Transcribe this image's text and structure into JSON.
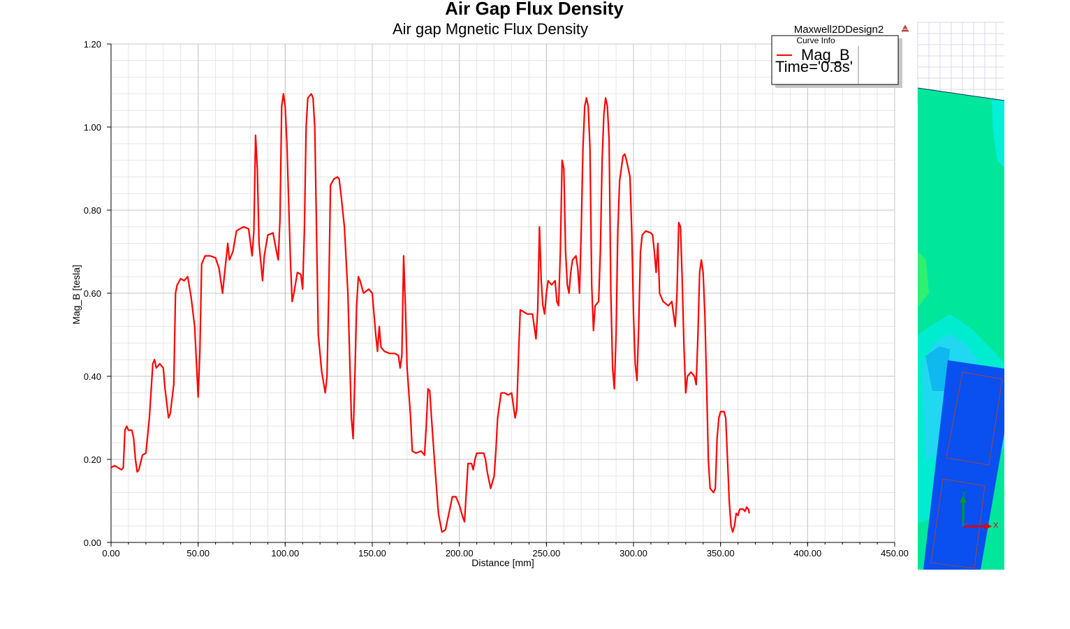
{
  "chart_data": {
    "type": "line",
    "title": "Air Gap Flux Density",
    "subtitle": "Air gap Mgnetic Flux Density",
    "design_name": "Maxwell2DDesign2",
    "xlabel": "Distance [mm]",
    "ylabel": "Mag_B [tesla]",
    "xlim": [
      0,
      450
    ],
    "ylim": [
      0,
      1.2
    ],
    "x_ticks": [
      "0.00",
      "50.00",
      "100.00",
      "150.00",
      "200.00",
      "250.00",
      "300.00",
      "350.00",
      "400.00",
      "450.00"
    ],
    "y_ticks": [
      "0.00",
      "0.20",
      "0.40",
      "0.60",
      "0.80",
      "1.00",
      "1.20"
    ],
    "grid": true,
    "legend": {
      "header": "Curve Info",
      "position": "top-right",
      "entries": [
        {
          "label": "Mag_B",
          "sublabel": "Time='0.8s'"
        }
      ]
    },
    "series": [
      {
        "name": "Mag_B",
        "color": "#ff0000",
        "points": [
          [
            0,
            0.18
          ],
          [
            2,
            0.185
          ],
          [
            4,
            0.18
          ],
          [
            6,
            0.175
          ],
          [
            7,
            0.18
          ],
          [
            8,
            0.27
          ],
          [
            9,
            0.28
          ],
          [
            10,
            0.27
          ],
          [
            12,
            0.27
          ],
          [
            13,
            0.25
          ],
          [
            14,
            0.2
          ],
          [
            15,
            0.17
          ],
          [
            16,
            0.175
          ],
          [
            18,
            0.21
          ],
          [
            20,
            0.215
          ],
          [
            22,
            0.3
          ],
          [
            24,
            0.43
          ],
          [
            25,
            0.44
          ],
          [
            26,
            0.42
          ],
          [
            28,
            0.43
          ],
          [
            30,
            0.42
          ],
          [
            31,
            0.37
          ],
          [
            33,
            0.3
          ],
          [
            34,
            0.31
          ],
          [
            36,
            0.38
          ],
          [
            37,
            0.6
          ],
          [
            38,
            0.62
          ],
          [
            40,
            0.635
          ],
          [
            42,
            0.63
          ],
          [
            44,
            0.64
          ],
          [
            46,
            0.59
          ],
          [
            48,
            0.52
          ],
          [
            50,
            0.35
          ],
          [
            51,
            0.46
          ],
          [
            52,
            0.67
          ],
          [
            54,
            0.69
          ],
          [
            57,
            0.69
          ],
          [
            60,
            0.685
          ],
          [
            62,
            0.66
          ],
          [
            64,
            0.6
          ],
          [
            65,
            0.64
          ],
          [
            67,
            0.72
          ],
          [
            68,
            0.68
          ],
          [
            70,
            0.7
          ],
          [
            72,
            0.75
          ],
          [
            74,
            0.755
          ],
          [
            76,
            0.76
          ],
          [
            79,
            0.755
          ],
          [
            81,
            0.69
          ],
          [
            82,
            0.75
          ],
          [
            83,
            0.98
          ],
          [
            84,
            0.9
          ],
          [
            85,
            0.72
          ],
          [
            87,
            0.63
          ],
          [
            88,
            0.69
          ],
          [
            90,
            0.74
          ],
          [
            93,
            0.745
          ],
          [
            95,
            0.7
          ],
          [
            96,
            0.68
          ],
          [
            97,
            0.78
          ],
          [
            98,
            1.05
          ],
          [
            99,
            1.08
          ],
          [
            100,
            1.05
          ],
          [
            101,
            0.96
          ],
          [
            103,
            0.68
          ],
          [
            104,
            0.58
          ],
          [
            105,
            0.6
          ],
          [
            107,
            0.65
          ],
          [
            109,
            0.645
          ],
          [
            110,
            0.61
          ],
          [
            111,
            0.75
          ],
          [
            112,
            1.0
          ],
          [
            113,
            1.07
          ],
          [
            115,
            1.08
          ],
          [
            116,
            1.07
          ],
          [
            117,
            1.0
          ],
          [
            118,
            0.75
          ],
          [
            119,
            0.5
          ],
          [
            121,
            0.41
          ],
          [
            123,
            0.36
          ],
          [
            124,
            0.4
          ],
          [
            125,
            0.6
          ],
          [
            126,
            0.86
          ],
          [
            128,
            0.875
          ],
          [
            130,
            0.88
          ],
          [
            131,
            0.875
          ],
          [
            132,
            0.84
          ],
          [
            134,
            0.76
          ],
          [
            136,
            0.6
          ],
          [
            137,
            0.45
          ],
          [
            138,
            0.3
          ],
          [
            139,
            0.25
          ],
          [
            140,
            0.4
          ],
          [
            141,
            0.57
          ],
          [
            142,
            0.64
          ],
          [
            143,
            0.63
          ],
          [
            145,
            0.6
          ],
          [
            148,
            0.61
          ],
          [
            150,
            0.6
          ],
          [
            152,
            0.5
          ],
          [
            153,
            0.46
          ],
          [
            154,
            0.52
          ],
          [
            155,
            0.47
          ],
          [
            157,
            0.46
          ],
          [
            160,
            0.455
          ],
          [
            163,
            0.455
          ],
          [
            165,
            0.45
          ],
          [
            166,
            0.42
          ],
          [
            167,
            0.45
          ],
          [
            168,
            0.69
          ],
          [
            169,
            0.57
          ],
          [
            170,
            0.42
          ],
          [
            172,
            0.3
          ],
          [
            173,
            0.22
          ],
          [
            175,
            0.215
          ],
          [
            178,
            0.22
          ],
          [
            180,
            0.21
          ],
          [
            181,
            0.28
          ],
          [
            182,
            0.37
          ],
          [
            183,
            0.365
          ],
          [
            184,
            0.3
          ],
          [
            186,
            0.18
          ],
          [
            188,
            0.07
          ],
          [
            190,
            0.025
          ],
          [
            192,
            0.03
          ],
          [
            194,
            0.07
          ],
          [
            196,
            0.11
          ],
          [
            198,
            0.11
          ],
          [
            200,
            0.09
          ],
          [
            202,
            0.06
          ],
          [
            203,
            0.05
          ],
          [
            204,
            0.12
          ],
          [
            205,
            0.19
          ],
          [
            207,
            0.19
          ],
          [
            208,
            0.175
          ],
          [
            209,
            0.2
          ],
          [
            210,
            0.215
          ],
          [
            212,
            0.215
          ],
          [
            214,
            0.215
          ],
          [
            215,
            0.2
          ],
          [
            216,
            0.17
          ],
          [
            218,
            0.13
          ],
          [
            220,
            0.16
          ],
          [
            221,
            0.22
          ],
          [
            222,
            0.3
          ],
          [
            224,
            0.36
          ],
          [
            226,
            0.36
          ],
          [
            228,
            0.355
          ],
          [
            230,
            0.36
          ],
          [
            232,
            0.3
          ],
          [
            233,
            0.32
          ],
          [
            234,
            0.45
          ],
          [
            235,
            0.56
          ],
          [
            237,
            0.555
          ],
          [
            239,
            0.55
          ],
          [
            241,
            0.55
          ],
          [
            242,
            0.55
          ],
          [
            243,
            0.52
          ],
          [
            244,
            0.49
          ],
          [
            245,
            0.56
          ],
          [
            246,
            0.76
          ],
          [
            247,
            0.63
          ],
          [
            248,
            0.57
          ],
          [
            249,
            0.55
          ],
          [
            250,
            0.6
          ],
          [
            251,
            0.63
          ],
          [
            253,
            0.62
          ],
          [
            255,
            0.63
          ],
          [
            256,
            0.58
          ],
          [
            257,
            0.57
          ],
          [
            258,
            0.7
          ],
          [
            259,
            0.92
          ],
          [
            260,
            0.9
          ],
          [
            261,
            0.7
          ],
          [
            262,
            0.62
          ],
          [
            263,
            0.6
          ],
          [
            264,
            0.65
          ],
          [
            265,
            0.68
          ],
          [
            267,
            0.69
          ],
          [
            268,
            0.66
          ],
          [
            269,
            0.6
          ],
          [
            270,
            0.75
          ],
          [
            271,
            0.95
          ],
          [
            272,
            1.05
          ],
          [
            273,
            1.07
          ],
          [
            274,
            1.05
          ],
          [
            275,
            0.95
          ],
          [
            276,
            0.62
          ],
          [
            277,
            0.51
          ],
          [
            278,
            0.57
          ],
          [
            280,
            0.58
          ],
          [
            281,
            0.7
          ],
          [
            282,
            0.92
          ],
          [
            283,
            1.03
          ],
          [
            284,
            1.07
          ],
          [
            285,
            1.05
          ],
          [
            286,
            0.97
          ],
          [
            287,
            0.6
          ],
          [
            288,
            0.42
          ],
          [
            289,
            0.37
          ],
          [
            290,
            0.5
          ],
          [
            291,
            0.75
          ],
          [
            292,
            0.87
          ],
          [
            294,
            0.93
          ],
          [
            295,
            0.935
          ],
          [
            296,
            0.92
          ],
          [
            298,
            0.88
          ],
          [
            299,
            0.75
          ],
          [
            300,
            0.55
          ],
          [
            301,
            0.43
          ],
          [
            302,
            0.39
          ],
          [
            303,
            0.52
          ],
          [
            304,
            0.7
          ],
          [
            305,
            0.74
          ],
          [
            307,
            0.75
          ],
          [
            310,
            0.745
          ],
          [
            311,
            0.74
          ],
          [
            312,
            0.7
          ],
          [
            313,
            0.65
          ],
          [
            314,
            0.72
          ],
          [
            315,
            0.6
          ],
          [
            317,
            0.58
          ],
          [
            320,
            0.57
          ],
          [
            322,
            0.58
          ],
          [
            323,
            0.55
          ],
          [
            324,
            0.52
          ],
          [
            325,
            0.6
          ],
          [
            326,
            0.77
          ],
          [
            327,
            0.76
          ],
          [
            328,
            0.63
          ],
          [
            329,
            0.47
          ],
          [
            330,
            0.36
          ],
          [
            331,
            0.4
          ],
          [
            333,
            0.41
          ],
          [
            335,
            0.4
          ],
          [
            336,
            0.38
          ],
          [
            337,
            0.5
          ],
          [
            338,
            0.65
          ],
          [
            339,
            0.68
          ],
          [
            340,
            0.65
          ],
          [
            341,
            0.55
          ],
          [
            342,
            0.38
          ],
          [
            343,
            0.2
          ],
          [
            344,
            0.13
          ],
          [
            346,
            0.12
          ],
          [
            347,
            0.13
          ],
          [
            348,
            0.25
          ],
          [
            349,
            0.3
          ],
          [
            350,
            0.315
          ],
          [
            352,
            0.315
          ],
          [
            353,
            0.3
          ],
          [
            354,
            0.2
          ],
          [
            355,
            0.1
          ],
          [
            356,
            0.04
          ],
          [
            357,
            0.025
          ],
          [
            358,
            0.04
          ],
          [
            359,
            0.07
          ],
          [
            360,
            0.065
          ],
          [
            361,
            0.08
          ],
          [
            362,
            0.08
          ],
          [
            363,
            0.08
          ],
          [
            364,
            0.075
          ],
          [
            365,
            0.085
          ],
          [
            366,
            0.08
          ],
          [
            366.5,
            0.07
          ]
        ]
      }
    ]
  }
}
